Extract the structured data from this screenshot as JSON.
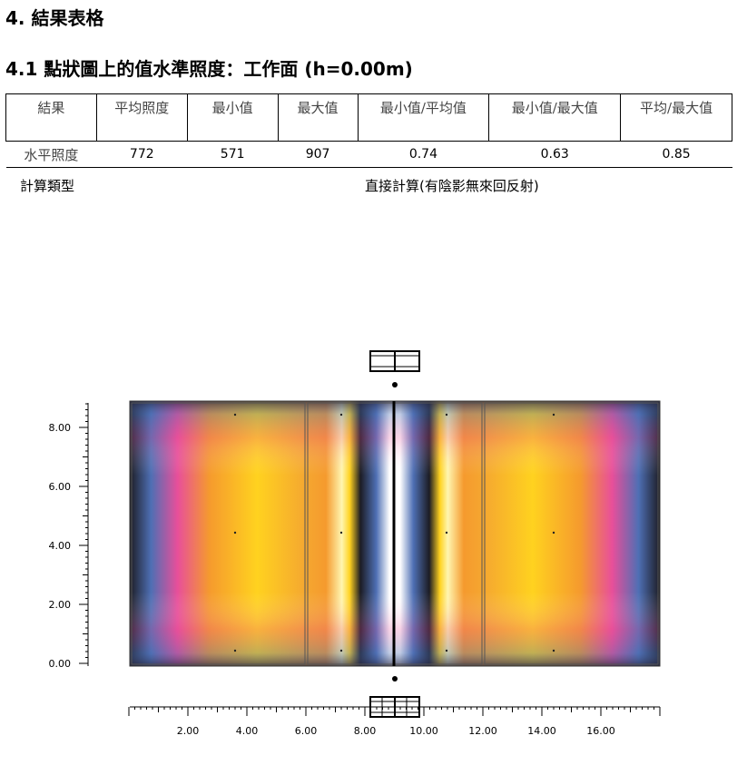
{
  "section_title": "4. 結果表格",
  "subsection_title": "4.1 點狀圖上的值水準照度：工作面 (h=0.00m)",
  "table": {
    "headers": [
      "結果",
      "平均照度",
      "最小值",
      "最大值",
      "最小值/平均值",
      "最小值/最大值",
      "平均/最大值"
    ],
    "row": [
      "水平照度",
      "772",
      "571",
      "907",
      "0.74",
      "0.63",
      "0.85"
    ]
  },
  "calculation": {
    "label": "計算類型",
    "value": "直接計算(有陰影無來回反射)"
  },
  "plot": {
    "x_ticks": [
      "2.00",
      "4.00",
      "6.00",
      "8.00",
      "10.00",
      "12.00",
      "14.00",
      "16.00"
    ],
    "y_ticks": [
      "0.00",
      "2.00",
      "4.00",
      "6.00",
      "8.00"
    ],
    "x_range": [
      0,
      18
    ],
    "y_range": [
      0,
      9
    ],
    "colors": {
      "bright": "#ffffff",
      "yellow": "#ffd21f",
      "orange": "#f59a2e",
      "pink": "#e84f9a",
      "blue": "#4e6fb4",
      "dark": "#1c1c24"
    }
  }
}
